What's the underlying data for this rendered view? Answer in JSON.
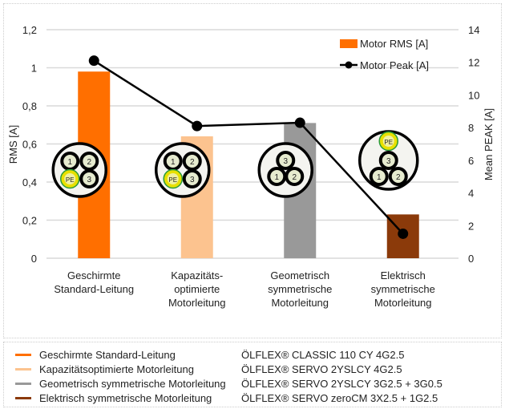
{
  "chart_data": {
    "type": "bar",
    "categories": [
      [
        "Geschirmte",
        "Standard-Leitung"
      ],
      [
        "Kapazitäts-",
        "optimierte",
        "Motorleitung"
      ],
      [
        "Geometrisch",
        "symmetrische",
        "Motorleitung"
      ],
      [
        "Elektrisch",
        "symmetrische",
        "Motorleitung"
      ]
    ],
    "series": [
      {
        "name": "Motor RMS [A]",
        "type": "bar",
        "axis": "left",
        "values": [
          0.98,
          0.64,
          0.71,
          0.23
        ],
        "colors": [
          "#ff6f00",
          "#fcc38f",
          "#999999",
          "#8b3a0a"
        ]
      },
      {
        "name": "Motor Peak [A]",
        "type": "line",
        "axis": "right",
        "values": [
          12.1,
          8.1,
          8.3,
          1.5
        ],
        "color": "#000000"
      }
    ],
    "ylabel": "RMS [A]",
    "ylabel_right": "Mean PEAK [A]",
    "ylim": [
      0,
      1.2
    ],
    "ylim_right": [
      0,
      14
    ],
    "yticks": [
      "0",
      "0,2",
      "0,4",
      "0,6",
      "0,8",
      "1",
      "1,2"
    ],
    "yticks_right": [
      "0",
      "2",
      "4",
      "6",
      "8",
      "10",
      "12",
      "14"
    ],
    "grid": true,
    "legend_position": "top-right",
    "cable_icons": [
      {
        "conductors": [
          "1",
          "2",
          "PE",
          "3"
        ]
      },
      {
        "conductors": [
          "1",
          "2",
          "PE",
          "3"
        ]
      },
      {
        "conductors": [
          "3",
          "1",
          "2"
        ]
      },
      {
        "conductors": [
          "PE",
          "3",
          "1",
          "2"
        ]
      }
    ]
  },
  "cable_legend": [
    {
      "name": "Geschirmte Standard-Leitung",
      "product": "ÖLFLEX® CLASSIC 110 CY 4G2.5",
      "color": "#ff6f00"
    },
    {
      "name": "Kapazitätsoptimierte Motorleitung",
      "product": "ÖLFLEX® SERVO 2YSLCY 4G2.5",
      "color": "#fcc38f"
    },
    {
      "name": "Geometrisch symmetrische Motorleitung",
      "product": "ÖLFLEX® SERVO 2YSLCY 3G2.5 + 3G0.5",
      "color": "#999999"
    },
    {
      "name": "Elektrisch symmetrische Motorleitung",
      "product": "ÖLFLEX® SERVO zeroCM 3X2.5 + 1G2.5",
      "color": "#8b3a0a"
    }
  ]
}
